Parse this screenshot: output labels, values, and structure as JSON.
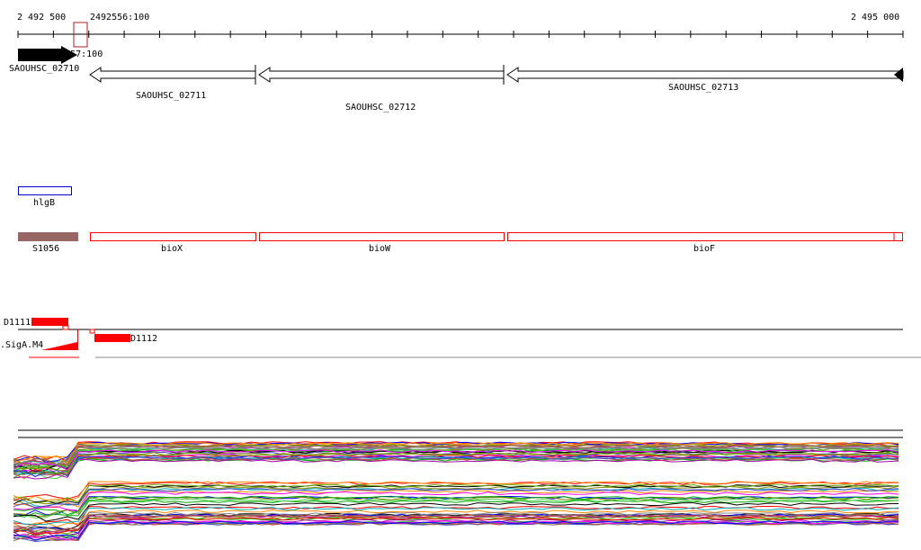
{
  "ruler": {
    "start_label": "2 492 500",
    "end_label": "2 495 000",
    "cursor_label_top": "2492556:100",
    "cursor_label_bottom": "2492557:100"
  },
  "genes": [
    {
      "name": "SAOUHSC_02710",
      "strand": "+",
      "fill": "#000000"
    },
    {
      "name": "SAOUHSC_02711",
      "strand": "-",
      "fill": "#ffffff"
    },
    {
      "name": "SAOUHSC_02712",
      "strand": "-",
      "fill": "#ffffff"
    },
    {
      "name": "SAOUHSC_02713",
      "strand": "-",
      "fill": "#ffffff"
    }
  ],
  "features_blue": [
    {
      "name": "hlgB",
      "color": "#0000cc"
    }
  ],
  "features_red": [
    {
      "name": "S1056",
      "color": "#996666",
      "filled": true
    },
    {
      "name": "bioX",
      "color": "#ff0000"
    },
    {
      "name": "bioW",
      "color": "#ff0000"
    },
    {
      "name": "bioF",
      "color": "#ff0000"
    }
  ],
  "regulation": {
    "left_label": "D1111",
    "right_label": "D1112",
    "motif_label": ".SigA.M4",
    "color": "#ff0000"
  }
}
